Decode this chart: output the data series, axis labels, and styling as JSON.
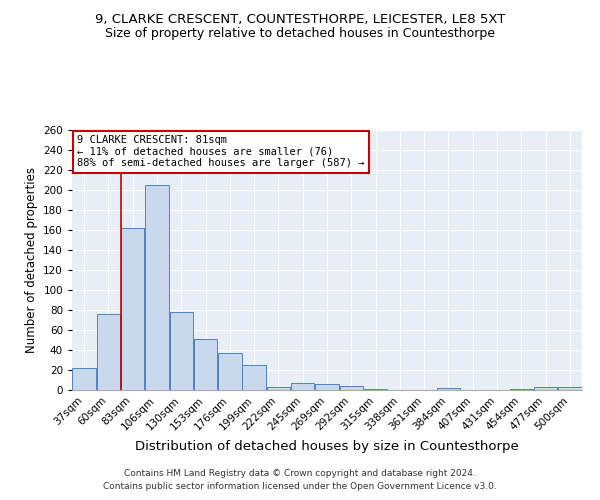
{
  "title": "9, CLARKE CRESCENT, COUNTESTHORPE, LEICESTER, LE8 5XT",
  "subtitle": "Size of property relative to detached houses in Countesthorpe",
  "xlabel": "Distribution of detached houses by size in Countesthorpe",
  "ylabel": "Number of detached properties",
  "bin_labels": [
    "37sqm",
    "60sqm",
    "83sqm",
    "106sqm",
    "130sqm",
    "153sqm",
    "176sqm",
    "199sqm",
    "222sqm",
    "245sqm",
    "269sqm",
    "292sqm",
    "315sqm",
    "338sqm",
    "361sqm",
    "384sqm",
    "407sqm",
    "431sqm",
    "454sqm",
    "477sqm",
    "500sqm"
  ],
  "bar_heights": [
    22,
    76,
    162,
    205,
    78,
    51,
    37,
    25,
    3,
    7,
    6,
    4,
    1,
    0,
    0,
    2,
    0,
    0,
    1,
    3,
    3
  ],
  "bar_color": "#c9d9ed",
  "bar_edge_color": "#5080c0",
  "vline_x_index": 2,
  "vline_color": "#cc0000",
  "annotation_line1": "9 CLARKE CRESCENT: 81sqm",
  "annotation_line2": "← 11% of detached houses are smaller (76)",
  "annotation_line3": "88% of semi-detached houses are larger (587) →",
  "annotation_box_color": "white",
  "annotation_box_edge": "#cc0000",
  "ylim": [
    0,
    260
  ],
  "yticks": [
    0,
    20,
    40,
    60,
    80,
    100,
    120,
    140,
    160,
    180,
    200,
    220,
    240,
    260
  ],
  "background_color": "#e8eef6",
  "footer_line1": "Contains HM Land Registry data © Crown copyright and database right 2024.",
  "footer_line2": "Contains public sector information licensed under the Open Government Licence v3.0.",
  "title_fontsize": 9.5,
  "subtitle_fontsize": 9,
  "xlabel_fontsize": 9.5,
  "ylabel_fontsize": 8.5,
  "tick_fontsize": 7.5,
  "annotation_fontsize": 7.5,
  "footer_fontsize": 6.5
}
